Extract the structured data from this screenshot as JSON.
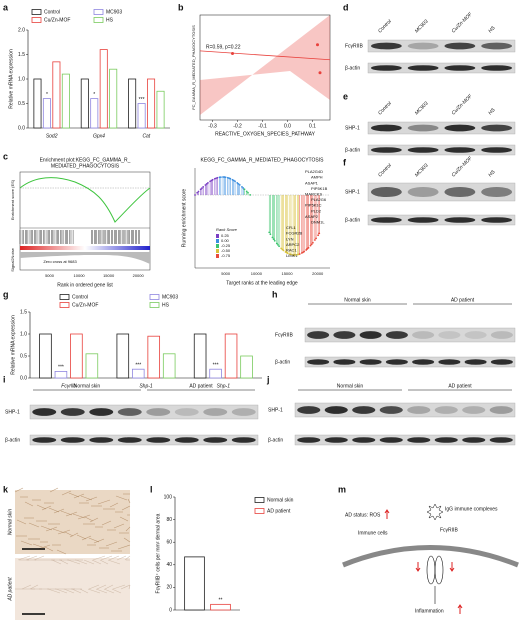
{
  "chart_data": [
    {
      "panel": "a",
      "type": "bar",
      "ylabel": "Relative mRNA expression",
      "categories": [
        "Sod2",
        "Gpx4",
        "Cat"
      ],
      "series": [
        {
          "name": "Control",
          "color": "#222222",
          "values": [
            1.0,
            1.0,
            1.0
          ]
        },
        {
          "name": "MC903",
          "color": "#8f86e0",
          "values": [
            0.6,
            0.6,
            0.5
          ]
        },
        {
          "name": "Cu/Zn-MOF",
          "color": "#e8413c",
          "values": [
            1.35,
            1.6,
            1.0
          ]
        },
        {
          "name": "HS",
          "color": "#7acb5e",
          "values": [
            1.1,
            1.2,
            0.75
          ]
        }
      ],
      "ylim": [
        0,
        2
      ],
      "yticks": [
        {
          "value": 0,
          "label": "0.0"
        },
        {
          "value": 0.5,
          "label": "0.5"
        },
        {
          "value": 1,
          "label": "1.0"
        },
        {
          "value": 1.5,
          "label": "1.5"
        },
        {
          "value": 2,
          "label": "2.0"
        }
      ],
      "annotations": [
        {
          "text": "*",
          "category": 0,
          "series": 1
        },
        {
          "text": "*",
          "category": 1,
          "series": 1
        },
        {
          "text": "***",
          "category": 2,
          "series": 1
        }
      ]
    },
    {
      "panel": "b",
      "type": "scatter",
      "ylabel": "FC_GAMMA_R_MEDIATED_PHAGOCYTOSIS",
      "xlabel": "REACTIVE_OXYGEN_SPECIES_PATHWAY",
      "annotation": "R=0.59, p=0.22",
      "x": [
        -0.22,
        0.12,
        0.13
      ],
      "values": [
        0.58,
        0.63,
        0.47
      ],
      "color": "#e8413c",
      "xlim": [
        -0.35,
        0.17
      ],
      "xticks": [
        -0.3,
        -0.2,
        -0.1,
        {
          "value": 0,
          "label": "0.0"
        },
        0.1
      ],
      "ylim": [
        0.2,
        0.8
      ]
    },
    {
      "panel": "g",
      "type": "bar",
      "ylabel": "Relative mRNA expression",
      "categories": [
        "Fcγrllb",
        "Shp-1",
        "Shp-1"
      ],
      "series": [
        {
          "name": "Control",
          "color": "#222222",
          "values": [
            1.0,
            1.0,
            1.0
          ]
        },
        {
          "name": "MC903",
          "color": "#8f86e0",
          "values": [
            0.15,
            0.2,
            0.2
          ]
        },
        {
          "name": "Cu/Zn-MOF",
          "color": "#e8413c",
          "values": [
            1.0,
            0.95,
            1.0
          ]
        },
        {
          "name": "HS",
          "color": "#7acb5e",
          "values": [
            0.55,
            0.55,
            0.5
          ]
        }
      ],
      "ylim": [
        0,
        1.5
      ],
      "yticks": [
        {
          "value": 0,
          "label": "0.0"
        },
        {
          "value": 0.5,
          "label": "0.5"
        },
        {
          "value": 1,
          "label": "1.0"
        },
        {
          "value": 1.5,
          "label": "1.5"
        }
      ],
      "annotations": [
        {
          "text": "***",
          "category": 0,
          "series": 1
        },
        {
          "text": "***",
          "category": 1,
          "series": 1
        },
        {
          "text": "***",
          "category": 2,
          "series": 1
        }
      ]
    },
    {
      "panel": "l",
      "type": "bar",
      "ylabel": "FcγRIIB⁺ cells per mm² dermal area",
      "categories": [
        null
      ],
      "series": [
        {
          "name": "Normal skin",
          "color": "#222222",
          "values": [
            47
          ]
        },
        {
          "name": "AD patient",
          "color": "#e8413c",
          "values": [
            5
          ]
        }
      ],
      "ylim": [
        0,
        100
      ],
      "yticks": [
        0,
        20,
        40,
        60,
        80,
        100
      ],
      "annotations": [
        {
          "text": "**",
          "category": 0,
          "series": 1
        }
      ]
    }
  ],
  "blots": [
    {
      "panel": "d",
      "columns": [
        "Control",
        "MC903",
        "Cu/Zn-MOF",
        "HS"
      ],
      "rows": [
        "FcγRIIB",
        "β-actin"
      ]
    },
    {
      "panel": "e",
      "columns": [
        "Control",
        "MC903",
        "Cu/Zn-MOF",
        "HS"
      ],
      "rows": [
        "SHP-1",
        "β-actin"
      ]
    },
    {
      "panel": "f",
      "columns": [
        "Control",
        "MC903",
        "Cu/Zn-MOF",
        "HS"
      ],
      "rows": [
        "SHP-1",
        "β-actin"
      ]
    },
    {
      "panel": "h",
      "groups": [
        "Normal skin",
        "AD patient"
      ],
      "rows": [
        "FcγRIIB",
        "β-actin"
      ]
    },
    {
      "panel": "i",
      "groups": [
        "Normal skin",
        "AD patient"
      ],
      "rows": [
        "SHP-1",
        "β-actin"
      ]
    },
    {
      "panel": "j",
      "groups": [
        "Normal skin",
        "AD patient"
      ],
      "rows": [
        "SHP-1",
        "β-actin"
      ]
    }
  ],
  "gsea": {
    "panel": "c",
    "title_lines": [
      "Enrichment plot:KEGG_FC_GAMMA_R_",
      "MEDIATED_PHAGOCYTOSIS"
    ],
    "es_label": "Enrichment score (ES)",
    "zero_cross": "Zero cross at 9683",
    "rank_label": "Rank in ordered gene list",
    "metric_label": "Signal2Noise",
    "xticks": [
      5000,
      10000,
      15000,
      20000
    ],
    "title": "KEGG_FC_GAMMA_R_MEDIATED_PHAGOCYTOSIS",
    "ylabel": "Running enrichment score",
    "xlabel": "Target ranks at the leading edge",
    "legend_title": "Rank Score",
    "legend_values": [
      "0.25",
      "0.00",
      "-0.25",
      "-0.50",
      "-0.75"
    ],
    "legend_colors": [
      "#7b3fc4",
      "#3a8ee0",
      "#3cc46e",
      "#d9c23a",
      "#e84a3c"
    ],
    "genes": [
      "PLA2G4D",
      "AMPH",
      "ASAP1",
      "PIP5K1B",
      "MARCKS",
      "PLA2G6",
      "PIP5K1C",
      "PLD2",
      "ASAP2",
      "DNM1L",
      "CFL1",
      "FCGR2B",
      "LYN",
      "ARPC2",
      "RAC1",
      "LIMK1"
    ]
  },
  "ihc": {
    "panel": "k",
    "labels": [
      "Normal skin",
      "AD patient"
    ]
  },
  "schematic": {
    "panel": "m",
    "ros": "AD status: ROS",
    "complex": "IgG immune complexes",
    "cells": "Immune cells",
    "receptor": "FcγRIIB",
    "outcome": "Inflammation"
  }
}
